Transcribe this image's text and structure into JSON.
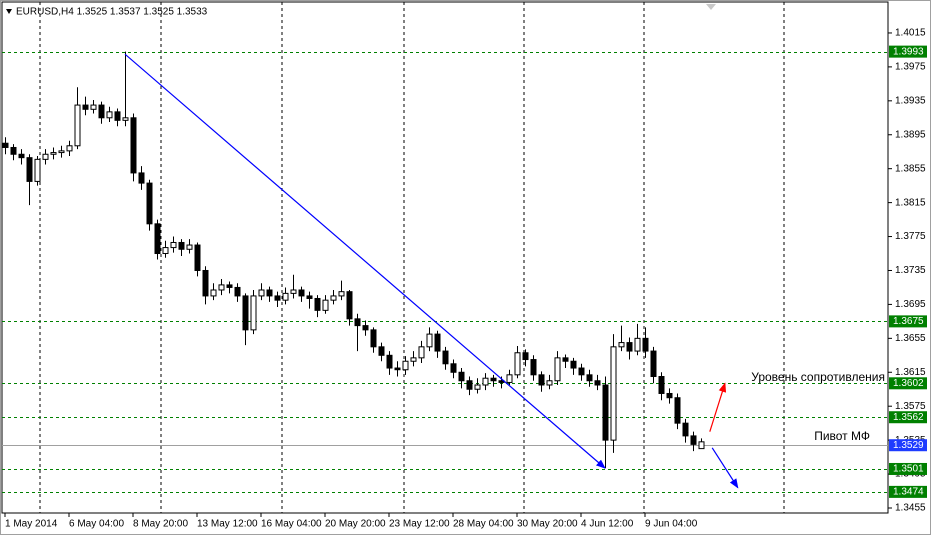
{
  "chart_data": {
    "type": "candlestick",
    "title": "EURUSD,H4  1.3525 1.3537 1.3525 1.3533",
    "categories": [
      "1 May 2014",
      null,
      null,
      null,
      null,
      null,
      null,
      null,
      "6 May 04:00",
      null,
      null,
      null,
      null,
      null,
      null,
      null,
      "8 May 20:00",
      null,
      null,
      null,
      null,
      null,
      null,
      null,
      "13 May 12:00",
      null,
      null,
      null,
      null,
      null,
      null,
      null,
      "16 May 04:00",
      null,
      null,
      null,
      null,
      null,
      null,
      null,
      "20 May 20:00",
      null,
      null,
      null,
      null,
      null,
      null,
      null,
      "23 May 12:00",
      null,
      null,
      null,
      null,
      null,
      null,
      null,
      "28 May 04:00",
      null,
      null,
      null,
      null,
      null,
      null,
      null,
      "30 May 20:00",
      null,
      null,
      null,
      null,
      null,
      null,
      null,
      "4 Jun 12:00",
      null,
      null,
      null,
      null,
      null,
      null,
      null,
      "9 Jun 04:00",
      null,
      null,
      null,
      null,
      null,
      null,
      null
    ],
    "ohlc": [
      [
        1.3885,
        1.3892,
        1.3872,
        1.388
      ],
      [
        1.388,
        1.3884,
        1.3865,
        1.3872
      ],
      [
        1.3872,
        1.3878,
        1.386,
        1.3868
      ],
      [
        1.3868,
        1.3872,
        1.3812,
        1.384
      ],
      [
        1.384,
        1.387,
        1.3835,
        1.3866
      ],
      [
        1.3866,
        1.3878,
        1.386,
        1.3872
      ],
      [
        1.3872,
        1.388,
        1.3866,
        1.3874
      ],
      [
        1.3874,
        1.3882,
        1.3868,
        1.3876
      ],
      [
        1.3876,
        1.3888,
        1.387,
        1.3882
      ],
      [
        1.3882,
        1.3951,
        1.3878,
        1.393
      ],
      [
        1.393,
        1.394,
        1.3918,
        1.3925
      ],
      [
        1.3925,
        1.3936,
        1.392,
        1.393
      ],
      [
        1.393,
        1.3934,
        1.3908,
        1.3915
      ],
      [
        1.3915,
        1.3928,
        1.391,
        1.3922
      ],
      [
        1.3922,
        1.3926,
        1.3905,
        1.3912
      ],
      [
        1.3912,
        1.3993,
        1.3905,
        1.3915
      ],
      [
        1.3915,
        1.392,
        1.384,
        1.385
      ],
      [
        1.385,
        1.3858,
        1.383,
        1.3838
      ],
      [
        1.3838,
        1.3842,
        1.3782,
        1.379
      ],
      [
        1.379,
        1.3795,
        1.3748,
        1.3755
      ],
      [
        1.3755,
        1.377,
        1.375,
        1.3762
      ],
      [
        1.3762,
        1.3775,
        1.3756,
        1.3768
      ],
      [
        1.3768,
        1.3772,
        1.3752,
        1.376
      ],
      [
        1.376,
        1.3772,
        1.3755,
        1.3765
      ],
      [
        1.3765,
        1.3768,
        1.3728,
        1.3735
      ],
      [
        1.3735,
        1.374,
        1.3695,
        1.3705
      ],
      [
        1.3705,
        1.372,
        1.37,
        1.3712
      ],
      [
        1.3712,
        1.3725,
        1.3706,
        1.3718
      ],
      [
        1.3718,
        1.3722,
        1.3708,
        1.3715
      ],
      [
        1.3715,
        1.372,
        1.3698,
        1.3705
      ],
      [
        1.3705,
        1.3708,
        1.3647,
        1.3665
      ],
      [
        1.3665,
        1.3712,
        1.366,
        1.3705
      ],
      [
        1.3705,
        1.372,
        1.37,
        1.3712
      ],
      [
        1.3712,
        1.3716,
        1.3698,
        1.3705
      ],
      [
        1.3705,
        1.371,
        1.3692,
        1.37
      ],
      [
        1.37,
        1.3715,
        1.3695,
        1.3708
      ],
      [
        1.3708,
        1.373,
        1.3702,
        1.3712
      ],
      [
        1.3712,
        1.3716,
        1.3698,
        1.3705
      ],
      [
        1.3705,
        1.371,
        1.369,
        1.3702
      ],
      [
        1.3702,
        1.3706,
        1.368,
        1.3688
      ],
      [
        1.3688,
        1.3706,
        1.3684,
        1.37
      ],
      [
        1.37,
        1.3712,
        1.3695,
        1.3705
      ],
      [
        1.3705,
        1.3723,
        1.37,
        1.371
      ],
      [
        1.371,
        1.3712,
        1.367,
        1.3678
      ],
      [
        1.3678,
        1.3684,
        1.364,
        1.367
      ],
      [
        1.367,
        1.3676,
        1.3658,
        1.3665
      ],
      [
        1.3665,
        1.3668,
        1.3638,
        1.3645
      ],
      [
        1.3645,
        1.365,
        1.3628,
        1.3635
      ],
      [
        1.3635,
        1.364,
        1.3612,
        1.362
      ],
      [
        1.362,
        1.3628,
        1.361,
        1.3618
      ],
      [
        1.3618,
        1.3634,
        1.3612,
        1.3628
      ],
      [
        1.3628,
        1.364,
        1.3622,
        1.3632
      ],
      [
        1.3632,
        1.3652,
        1.3626,
        1.3645
      ],
      [
        1.3645,
        1.3668,
        1.364,
        1.366
      ],
      [
        1.366,
        1.3664,
        1.3632,
        1.364
      ],
      [
        1.364,
        1.3645,
        1.3618,
        1.3625
      ],
      [
        1.3625,
        1.363,
        1.3608,
        1.3615
      ],
      [
        1.3615,
        1.362,
        1.3596,
        1.3605
      ],
      [
        1.3605,
        1.361,
        1.3588,
        1.3595
      ],
      [
        1.3595,
        1.3608,
        1.359,
        1.36
      ],
      [
        1.36,
        1.3614,
        1.3594,
        1.3608
      ],
      [
        1.3608,
        1.3612,
        1.3598,
        1.3605
      ],
      [
        1.3605,
        1.361,
        1.3596,
        1.3603
      ],
      [
        1.3603,
        1.3618,
        1.36,
        1.3612
      ],
      [
        1.3612,
        1.3646,
        1.3608,
        1.3638
      ],
      [
        1.3638,
        1.3642,
        1.3622,
        1.363
      ],
      [
        1.363,
        1.3635,
        1.3605,
        1.3612
      ],
      [
        1.3612,
        1.3616,
        1.3592,
        1.36
      ],
      [
        1.36,
        1.3612,
        1.3595,
        1.3605
      ],
      [
        1.3605,
        1.364,
        1.36,
        1.3632
      ],
      [
        1.3632,
        1.3636,
        1.362,
        1.3628
      ],
      [
        1.3628,
        1.3632,
        1.3612,
        1.362
      ],
      [
        1.362,
        1.3625,
        1.3605,
        1.3612
      ],
      [
        1.3612,
        1.3618,
        1.3598,
        1.3605
      ],
      [
        1.3605,
        1.3612,
        1.3594,
        1.36
      ],
      [
        1.36,
        1.361,
        1.3502,
        1.3535
      ],
      [
        1.3535,
        1.366,
        1.352,
        1.3645
      ],
      [
        1.3645,
        1.367,
        1.364,
        1.365
      ],
      [
        1.365,
        1.3656,
        1.363,
        1.364
      ],
      [
        1.364,
        1.3672,
        1.3635,
        1.3655
      ],
      [
        1.3655,
        1.3668,
        1.3632,
        1.364
      ],
      [
        1.364,
        1.3645,
        1.3602,
        1.361
      ],
      [
        1.361,
        1.3615,
        1.3582,
        1.359
      ],
      [
        1.359,
        1.3596,
        1.3578,
        1.3585
      ],
      [
        1.3585,
        1.359,
        1.3548,
        1.3555
      ],
      [
        1.3555,
        1.356,
        1.3532,
        1.354
      ],
      [
        1.354,
        1.3545,
        1.3522,
        1.353
      ],
      [
        1.3525,
        1.3537,
        1.3525,
        1.3533
      ]
    ],
    "ylim": [
      1.34491,
      1.40515
    ],
    "yticks": [
      1.4015,
      1.3975,
      1.3935,
      1.3895,
      1.3855,
      1.3815,
      1.3775,
      1.3735,
      1.3695,
      1.3655,
      1.3615,
      1.3575,
      1.3535,
      1.3495,
      1.3455
    ],
    "levels": [
      {
        "value": 1.3993,
        "color": "#008000",
        "style": "dashed"
      },
      {
        "value": 1.3675,
        "color": "#008000",
        "style": "dashed"
      },
      {
        "value": 1.3602,
        "color": "#008000",
        "style": "dashed"
      },
      {
        "value": 1.3562,
        "color": "#008000",
        "style": "dashed"
      },
      {
        "value": 1.3529,
        "color": "#1e3cff",
        "style": "solid"
      },
      {
        "value": 1.3501,
        "color": "#008000",
        "style": "dashed"
      },
      {
        "value": 1.3474,
        "color": "#008000",
        "style": "dashed"
      }
    ],
    "trendlines": [
      {
        "from": [
          15,
          1.399
        ],
        "to": [
          75,
          1.3502
        ],
        "color": "#0000ff"
      }
    ],
    "arrows": [
      {
        "from": [
          88.1,
          1.3545
        ],
        "to": [
          90,
          1.3602
        ],
        "color": "#ff0000"
      },
      {
        "from": [
          88.4,
          1.3526
        ],
        "to": [
          91.6,
          1.3479
        ],
        "color": "#0000ff"
      }
    ],
    "annotations": [
      "Уровень сопротивления",
      "Пивот МФ"
    ],
    "grid": true
  }
}
